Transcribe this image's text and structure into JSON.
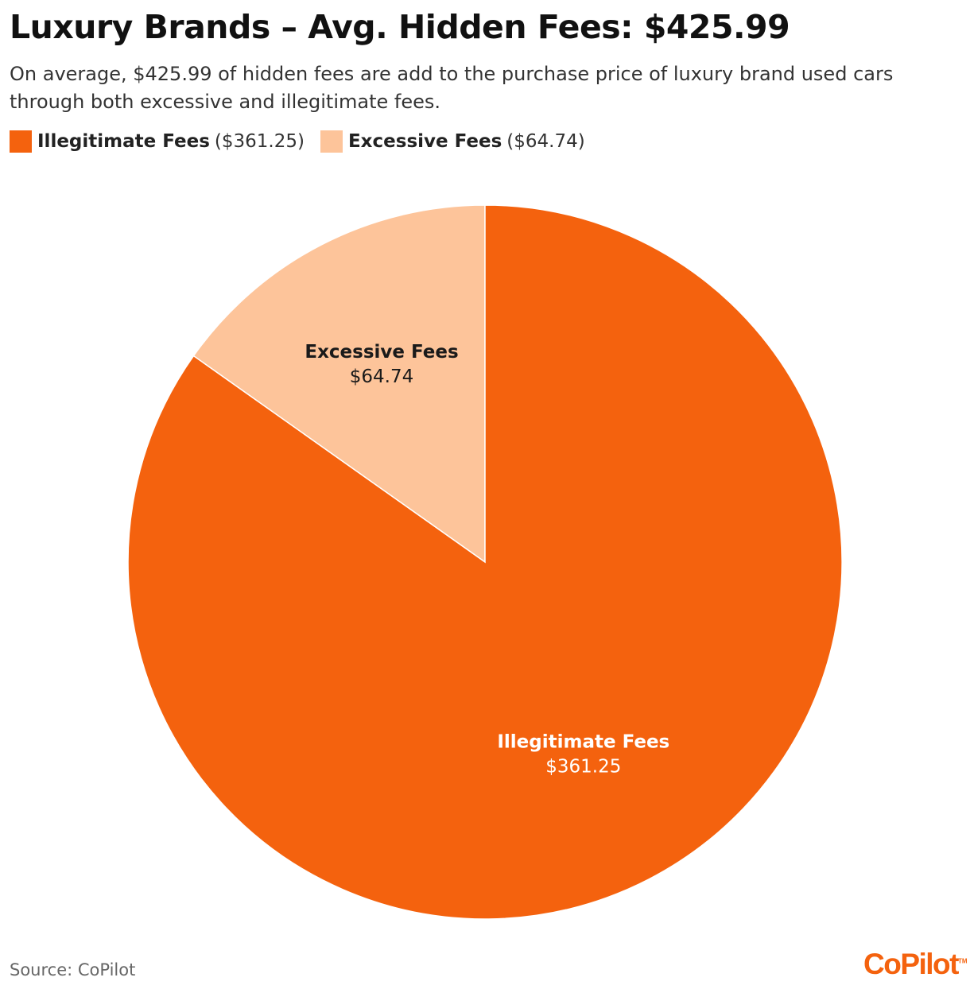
{
  "colors": {
    "illegitimate": "#F4620E",
    "excessive": "#FDC49A",
    "label_on_light": "#1a1a1a",
    "label_on_dark": "#ffffff",
    "logo": "#F4620E"
  },
  "header": {
    "title": "Luxury Brands – Avg. Hidden Fees: $425.99",
    "subtitle": "On average, $425.99 of hidden fees are add to the purchase price of luxury brand used cars through both excessive and illegitimate fees."
  },
  "legend": {
    "items": [
      {
        "name": "Illegitimate Fees",
        "value": "($361.25)"
      },
      {
        "name": "Excessive Fees",
        "value": "($64.74)"
      }
    ]
  },
  "chart_data": {
    "type": "pie",
    "title": "Luxury Brands – Avg. Hidden Fees: $425.99",
    "legend_position": "top-left",
    "slices": [
      {
        "name": "Excessive Fees",
        "value": 64.74,
        "label": "$64.74",
        "color": "#FDC49A"
      },
      {
        "name": "Illegitimate Fees",
        "value": 361.25,
        "label": "$361.25",
        "color": "#F4620E"
      }
    ]
  },
  "footer": {
    "source": "Source: CoPilot",
    "logo_text": "CoPilot",
    "logo_tm": "TM"
  }
}
